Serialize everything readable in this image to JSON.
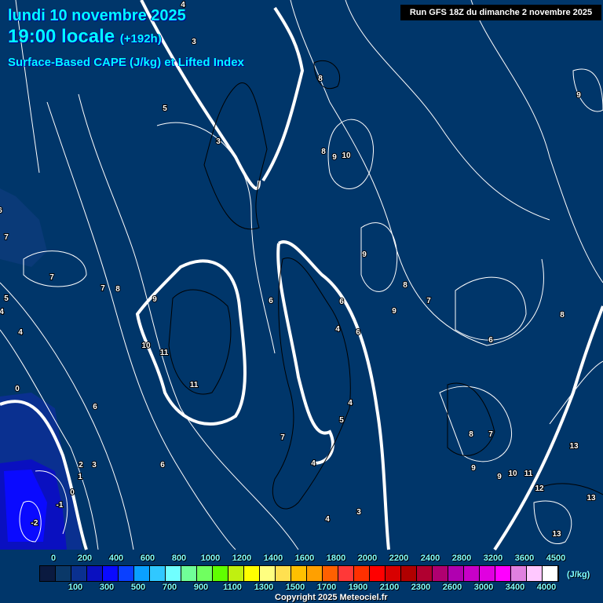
{
  "header": {
    "date": "lundi 10 novembre 2025",
    "time": "19:00 locale",
    "lead": "(+192h)",
    "parameter": "Surface-Based CAPE (J/kg) et Lifted Index"
  },
  "run": "Run GFS 18Z du dimanche 2 novembre 2025",
  "colorbar": {
    "unit": "(J/kg)",
    "top_labels": [
      "0",
      "200",
      "400",
      "600",
      "800",
      "1000",
      "1200",
      "1400",
      "1600",
      "1800",
      "2000",
      "2200",
      "2400",
      "2800",
      "3200",
      "3600",
      "4500"
    ],
    "bottom_labels": [
      "100",
      "300",
      "500",
      "700",
      "900",
      "1100",
      "1300",
      "1500",
      "1700",
      "1900",
      "2100",
      "2300",
      "2600",
      "3000",
      "3400",
      "4000"
    ],
    "colors": [
      "#0a1a40",
      "#0a3868",
      "#0a3090",
      "#0a10c0",
      "#0a0aff",
      "#0a40ff",
      "#0aa0ff",
      "#30c8ff",
      "#70ffff",
      "#70ff98",
      "#70ff60",
      "#60ff00",
      "#c0f010",
      "#ffff00",
      "#ffff80",
      "#ffe050",
      "#ffc000",
      "#ffa000",
      "#ff6000",
      "#ff3838",
      "#ff3000",
      "#ff0000",
      "#d80000",
      "#b00000",
      "#b00030",
      "#b00070",
      "#b000b0",
      "#c800c8",
      "#e000e0",
      "#ff00ff",
      "#e080e0",
      "#ffc8ff",
      "#ffffff"
    ]
  },
  "lifted_index_labels": [
    "4",
    "3",
    "5",
    "3",
    "8",
    "9",
    "8",
    "9",
    "10",
    "6",
    "7",
    "7",
    "7",
    "8",
    "9",
    "9",
    "8",
    "5",
    "4",
    "4",
    "6",
    "6",
    "7",
    "9",
    "8",
    "4",
    "6",
    "6",
    "10",
    "11",
    "11",
    "0",
    "6",
    "4",
    "5",
    "7",
    "8",
    "7",
    "13",
    "4",
    "2",
    "3",
    "6",
    "9",
    "9",
    "10",
    "11",
    "1",
    "0",
    "12",
    "13",
    "-1",
    "3",
    "4",
    "-2",
    "13"
  ],
  "copyright": "Copyright 2025 Meteociel.fr"
}
